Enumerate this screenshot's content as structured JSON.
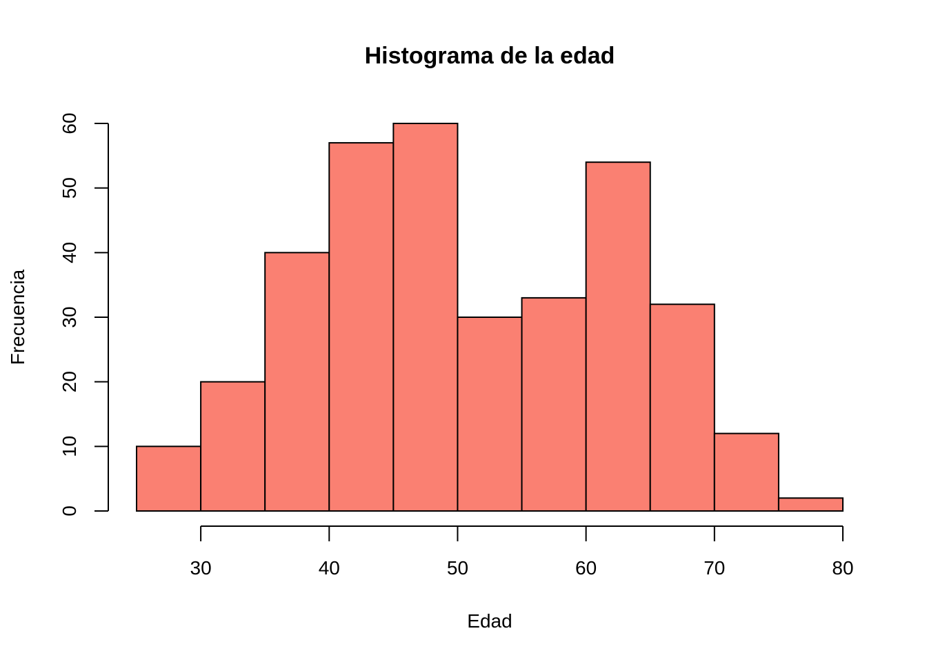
{
  "chart_data": {
    "type": "bar",
    "title": "Histograma de la edad",
    "xlabel": "Edad",
    "ylabel": "Frecuencia",
    "bins": [
      {
        "from": 25,
        "to": 30,
        "count": 10
      },
      {
        "from": 30,
        "to": 35,
        "count": 20
      },
      {
        "from": 35,
        "to": 40,
        "count": 40
      },
      {
        "from": 40,
        "to": 45,
        "count": 57
      },
      {
        "from": 45,
        "to": 50,
        "count": 60
      },
      {
        "from": 50,
        "to": 55,
        "count": 30
      },
      {
        "from": 55,
        "to": 60,
        "count": 33
      },
      {
        "from": 60,
        "to": 65,
        "count": 54
      },
      {
        "from": 65,
        "to": 70,
        "count": 32
      },
      {
        "from": 70,
        "to": 75,
        "count": 12
      },
      {
        "from": 75,
        "to": 80,
        "count": 2
      }
    ],
    "xlim": [
      25,
      80
    ],
    "ylim": [
      0,
      60
    ],
    "x_ticks": [
      30,
      40,
      50,
      60,
      70,
      80
    ],
    "y_ticks": [
      0,
      10,
      20,
      30,
      40,
      50,
      60
    ],
    "bar_color": "#FA8072",
    "bar_border_color": "#000000",
    "grid": false,
    "legend": "none"
  }
}
